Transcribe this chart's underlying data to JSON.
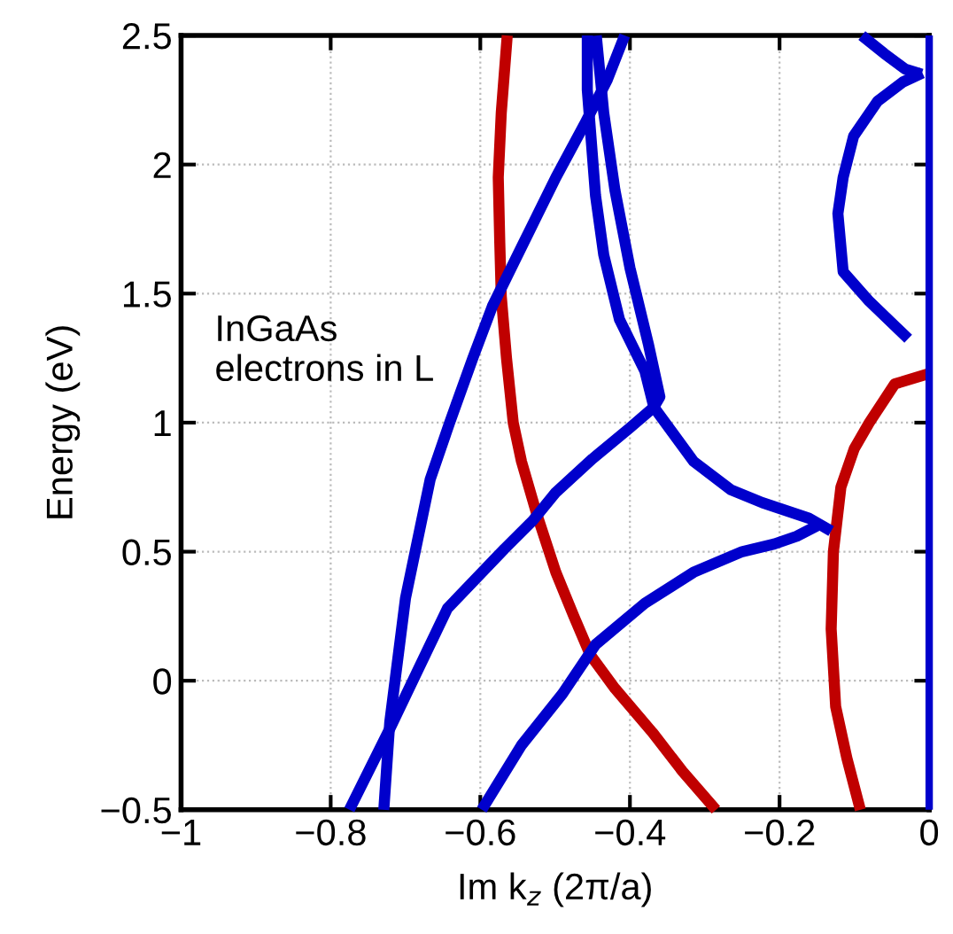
{
  "chart_data": {
    "type": "line",
    "xlabel": "Im k$_{z}$ (2π/a)",
    "ylabel": "Energy (eV)",
    "annotations": [
      "InGaAs\nelectrons in L"
    ],
    "xlim": [
      -1,
      0
    ],
    "ylim": [
      -0.5,
      2.5
    ],
    "xticks": [
      {
        "value": -1,
        "label": "−1"
      },
      {
        "value": -0.8,
        "label": "−0.8"
      },
      {
        "value": -0.6,
        "label": "−0.6"
      },
      {
        "value": -0.4,
        "label": "−0.4"
      },
      {
        "value": -0.2,
        "label": "−0.2"
      },
      0
    ],
    "yticks": [
      {
        "value": -0.5,
        "label": "−0.5"
      },
      0,
      0.5,
      1,
      1.5,
      2,
      2.5
    ],
    "grid": true,
    "marker": "none",
    "line_style": "solid",
    "series": [
      {
        "color": "#c00000",
        "x": [
          -0.564,
          -0.572,
          -0.576,
          -0.574,
          -0.572,
          -0.565,
          -0.556,
          -0.545,
          -0.525,
          -0.499,
          -0.475,
          -0.453,
          -0.42,
          -0.37,
          -0.33,
          -0.285
        ],
        "values": [
          2.5,
          2.2,
          1.95,
          1.7,
          1.49,
          1.25,
          1.0,
          0.85,
          0.65,
          0.42,
          0.25,
          0.1,
          -0.03,
          -0.2,
          -0.35,
          -0.5
        ]
      },
      {
        "color": "#c00000",
        "x": [
          -0.092,
          -0.11,
          -0.125,
          -0.131,
          -0.128,
          -0.118,
          -0.1,
          -0.08,
          -0.046,
          0
        ],
        "values": [
          -0.5,
          -0.3,
          -0.1,
          0.2,
          0.5,
          0.75,
          0.9,
          1.0,
          1.15,
          1.19
        ]
      },
      {
        "color": "#0000cc",
        "x": [
          -0.729,
          -0.721,
          -0.7,
          -0.667,
          -0.641,
          -0.61,
          -0.584,
          -0.545,
          -0.499,
          -0.46,
          -0.43,
          -0.407
        ],
        "values": [
          -0.5,
          -0.16,
          0.32,
          0.78,
          1.0,
          1.25,
          1.45,
          1.68,
          1.95,
          2.16,
          2.33,
          2.5
        ]
      },
      {
        "color": "#0000cc",
        "x": [
          -0.775,
          -0.72,
          -0.644,
          -0.568,
          -0.53,
          -0.499,
          -0.45,
          -0.4,
          -0.368,
          -0.315,
          -0.265,
          -0.223,
          -0.161,
          -0.131
        ],
        "values": [
          -0.5,
          -0.18,
          0.28,
          0.51,
          0.62,
          0.73,
          0.86,
          0.98,
          1.06,
          0.85,
          0.74,
          0.69,
          0.63,
          0.58
        ]
      },
      {
        "color": "#0000cc",
        "x": [
          -0.457,
          -0.457,
          -0.446,
          -0.435,
          -0.414,
          -0.38,
          -0.368,
          -0.36,
          -0.375,
          -0.4,
          -0.42,
          -0.435,
          -0.445
        ],
        "values": [
          2.5,
          2.29,
          1.88,
          1.65,
          1.4,
          1.2,
          1.06,
          1.1,
          1.3,
          1.6,
          1.9,
          2.2,
          2.5
        ]
      },
      {
        "color": "#0000cc",
        "x": [
          -0.598,
          -0.545,
          -0.49,
          -0.446,
          -0.38,
          -0.315,
          -0.25,
          -0.207,
          -0.177,
          -0.15
        ],
        "values": [
          -0.5,
          -0.25,
          -0.05,
          0.14,
          0.3,
          0.42,
          0.5,
          0.53,
          0.56,
          0.6
        ]
      },
      {
        "color": "#0000cc",
        "x": [
          -0.028,
          -0.08,
          -0.115,
          -0.122,
          -0.115,
          -0.101,
          -0.069,
          -0.035,
          -0.009
        ],
        "values": [
          1.325,
          1.47,
          1.585,
          1.81,
          1.95,
          2.11,
          2.245,
          2.32,
          2.355
        ]
      },
      {
        "color": "#0000cc",
        "x": [
          -0.09,
          -0.06,
          -0.032,
          -0.01
        ],
        "values": [
          2.5,
          2.43,
          2.37,
          2.35
        ]
      },
      {
        "color": "#0000cc",
        "x": [
          0,
          0,
          0,
          0,
          0,
          0,
          0
        ],
        "values": [
          -0.5,
          0,
          0.5,
          1,
          1.5,
          2,
          2.5
        ]
      }
    ]
  }
}
